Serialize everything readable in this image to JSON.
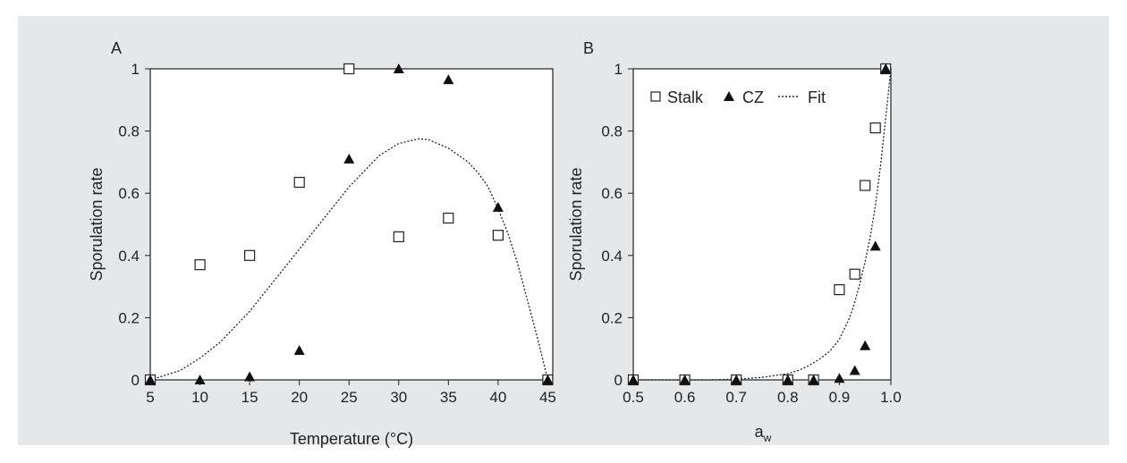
{
  "chart_data": [
    {
      "type": "scatter",
      "panel_label": "A",
      "xlabel": "Temperature (°C)",
      "ylabel": "Sporulation rate",
      "xlim": [
        5,
        45.5
      ],
      "ylim": [
        0,
        1
      ],
      "xticks": [
        5,
        10,
        15,
        20,
        25,
        30,
        35,
        40,
        45
      ],
      "yticks": [
        0,
        0.2,
        0.4,
        0.6,
        0.8,
        1
      ],
      "ytick_labels": [
        "0",
        "0.2",
        "0.4",
        "0.6",
        "0.8",
        "1"
      ],
      "grid": false,
      "series": [
        {
          "name": "Stalk",
          "marker": "open-square",
          "x": [
            5,
            10,
            15,
            20,
            25,
            30,
            35,
            40,
            45
          ],
          "y": [
            0,
            0.37,
            0.4,
            0.635,
            1.0,
            0.46,
            0.52,
            0.465,
            0
          ]
        },
        {
          "name": "CZ",
          "marker": "filled-triangle",
          "x": [
            5,
            10,
            15,
            20,
            25,
            30,
            35,
            40,
            45
          ],
          "y": [
            0,
            0,
            0.01,
            0.095,
            0.71,
            1.0,
            0.965,
            0.555,
            0
          ]
        },
        {
          "name": "Fit",
          "marker": "dotted-line",
          "x": [
            5,
            8,
            10,
            12,
            15,
            18,
            20,
            22,
            25,
            28,
            30,
            32,
            33,
            35,
            37,
            38,
            39,
            40,
            41,
            42,
            43,
            44,
            45
          ],
          "y": [
            0,
            0.03,
            0.07,
            0.12,
            0.22,
            0.34,
            0.42,
            0.5,
            0.62,
            0.72,
            0.76,
            0.775,
            0.772,
            0.745,
            0.7,
            0.665,
            0.62,
            0.55,
            0.47,
            0.37,
            0.25,
            0.13,
            0
          ]
        }
      ]
    },
    {
      "type": "scatter",
      "panel_label": "B",
      "xlabel": "a",
      "xlabel_sub": "w",
      "ylabel": "Sporulation rate",
      "xlim": [
        0.5,
        1.0
      ],
      "ylim": [
        0,
        1
      ],
      "xticks": [
        0.5,
        0.6,
        0.7,
        0.8,
        0.9,
        1.0
      ],
      "xtick_labels": [
        "0.5",
        "0.6",
        "0.7",
        "0.8",
        "0.9",
        "1.0"
      ],
      "yticks": [
        0,
        0.2,
        0.4,
        0.6,
        0.8,
        1
      ],
      "ytick_labels": [
        "0",
        "0.2",
        "0.4",
        "0.6",
        "0.8",
        "1"
      ],
      "grid": false,
      "legend": {
        "position": "top-left",
        "items": [
          "Stalk",
          "CZ",
          "Fit"
        ]
      },
      "series": [
        {
          "name": "Stalk",
          "marker": "open-square",
          "x": [
            0.5,
            0.6,
            0.7,
            0.8,
            0.85,
            0.9,
            0.93,
            0.95,
            0.97,
            0.99
          ],
          "y": [
            0,
            0,
            0,
            0,
            0,
            0.29,
            0.34,
            0.625,
            0.81,
            1.0
          ]
        },
        {
          "name": "CZ",
          "marker": "filled-triangle",
          "x": [
            0.5,
            0.6,
            0.7,
            0.8,
            0.85,
            0.9,
            0.93,
            0.95,
            0.97,
            0.99
          ],
          "y": [
            0,
            0,
            0,
            0,
            0,
            0.005,
            0.03,
            0.11,
            0.43,
            1.0
          ]
        },
        {
          "name": "Fit",
          "marker": "dotted-line",
          "x": [
            0.5,
            0.55,
            0.6,
            0.65,
            0.7,
            0.75,
            0.8,
            0.82,
            0.84,
            0.86,
            0.88,
            0.9,
            0.92,
            0.93,
            0.94,
            0.95,
            0.96,
            0.97,
            0.98,
            0.99,
            1.0
          ],
          "y": [
            0,
            0,
            0,
            0,
            0.002,
            0.008,
            0.02,
            0.03,
            0.045,
            0.065,
            0.09,
            0.13,
            0.2,
            0.25,
            0.31,
            0.38,
            0.46,
            0.56,
            0.69,
            0.84,
            1.0
          ]
        }
      ]
    }
  ]
}
